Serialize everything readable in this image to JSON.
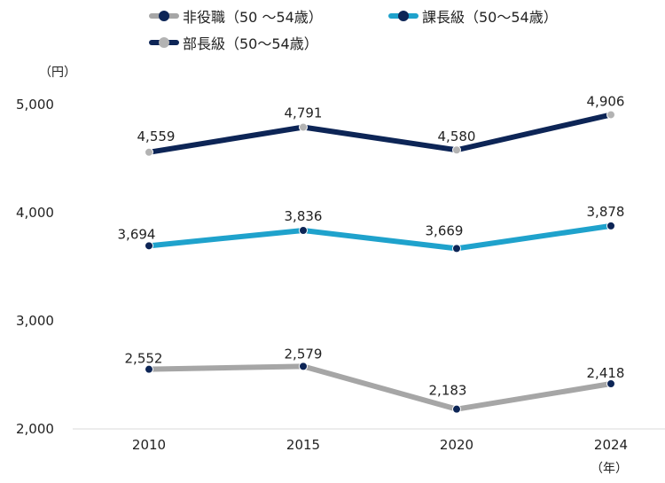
{
  "chart_data": {
    "type": "line",
    "y_unit": "（円）",
    "x_unit": "（年）",
    "categories": [
      "2010",
      "2015",
      "2020",
      "2024"
    ],
    "ylim": [
      2000,
      5000
    ],
    "yticks": [
      2000,
      3000,
      4000,
      5000
    ],
    "ytick_labels": [
      "2,000",
      "3,000",
      "4,000",
      "5,000"
    ],
    "grid": false,
    "legend_position": "top",
    "series": [
      {
        "name": "非役職（50 ～54歳）",
        "values": [
          2552,
          2579,
          2183,
          2418
        ],
        "labels": [
          "2,552",
          "2,579",
          "2,183",
          "2,418"
        ],
        "line_color": "#a6a6a6",
        "marker_color": "#0d2556"
      },
      {
        "name": "課長級（50～54歳）",
        "values": [
          3694,
          3836,
          3669,
          3878
        ],
        "labels": [
          "3,694",
          "3,836",
          "3,669",
          "3,878"
        ],
        "line_color": "#1fa2cc",
        "marker_color": "#0d2556"
      },
      {
        "name": "部長級（50～54歳）",
        "values": [
          4559,
          4791,
          4580,
          4906
        ],
        "labels": [
          "4,559",
          "4,791",
          "4,580",
          "4,906"
        ],
        "line_color": "#0d2556",
        "marker_color": "#b3b3b3"
      }
    ]
  }
}
